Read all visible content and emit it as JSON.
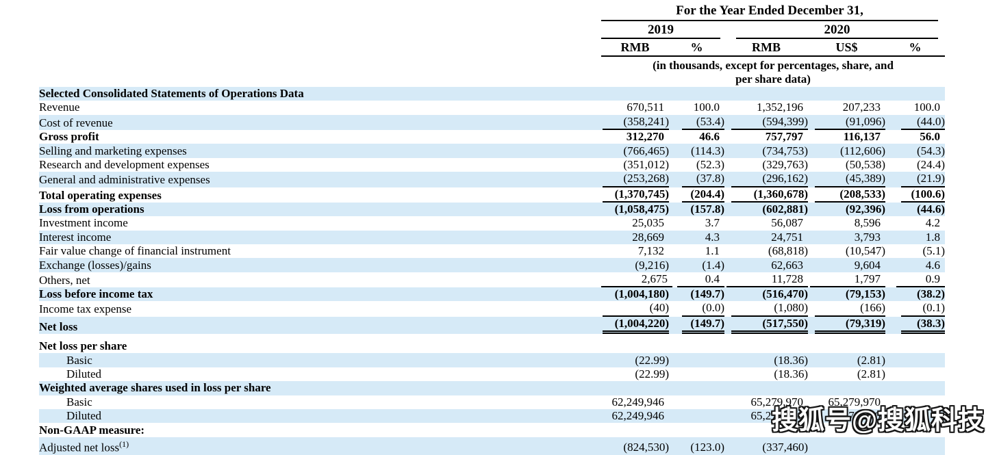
{
  "header": {
    "title": "For the Year Ended December 31,",
    "groups": [
      {
        "label": "2019"
      },
      {
        "label": "2020"
      }
    ],
    "columns": [
      "RMB",
      "%",
      "RMB",
      "US$",
      "%"
    ],
    "note_line1": "(in thousands, except for percentages, share, and",
    "note_line2": "per share data)"
  },
  "table": {
    "rows": [
      {
        "label": "Selected Consolidated Statements of Operations Data",
        "bold": true,
        "indent": false,
        "shade": true,
        "rule": "",
        "values": [
          "",
          "",
          "",
          "",
          ""
        ]
      },
      {
        "label": "Revenue",
        "bold": false,
        "indent": false,
        "shade": false,
        "rule": "",
        "values": [
          "670,511",
          "100.0",
          "1,352,196",
          "207,233",
          "100.0"
        ]
      },
      {
        "label": "Cost of revenue",
        "bold": false,
        "indent": false,
        "shade": true,
        "rule": "single",
        "values": [
          "(358,241)",
          "(53.4)",
          "(594,399)",
          "(91,096)",
          "(44.0)"
        ]
      },
      {
        "label": "Gross profit",
        "bold": true,
        "indent": false,
        "shade": false,
        "rule": "",
        "values": [
          "312,270",
          "46.6",
          "757,797",
          "116,137",
          "56.0"
        ]
      },
      {
        "label": "Selling and marketing expenses",
        "bold": false,
        "indent": false,
        "shade": true,
        "rule": "",
        "values": [
          "(766,465)",
          "(114.3)",
          "(734,753)",
          "(112,606)",
          "(54.3)"
        ]
      },
      {
        "label": "Research and development expenses",
        "bold": false,
        "indent": false,
        "shade": false,
        "rule": "",
        "values": [
          "(351,012)",
          "(52.3)",
          "(329,763)",
          "(50,538)",
          "(24.4)"
        ]
      },
      {
        "label": "General and administrative expenses",
        "bold": false,
        "indent": false,
        "shade": true,
        "rule": "single",
        "values": [
          "(253,268)",
          "(37.8)",
          "(296,162)",
          "(45,389)",
          "(21.9)"
        ]
      },
      {
        "label": "Total operating expenses",
        "bold": true,
        "indent": false,
        "shade": false,
        "rule": "single",
        "values": [
          "(1,370,745)",
          "(204.4)",
          "(1,360,678)",
          "(208,533)",
          "(100.6)"
        ]
      },
      {
        "label": "Loss from operations",
        "bold": true,
        "indent": false,
        "shade": true,
        "rule": "",
        "values": [
          "(1,058,475)",
          "(157.8)",
          "(602,881)",
          "(92,396)",
          "(44.6)"
        ]
      },
      {
        "label": "Investment income",
        "bold": false,
        "indent": false,
        "shade": false,
        "rule": "",
        "values": [
          "25,035",
          "3.7",
          "56,087",
          "8,596",
          "4.2"
        ]
      },
      {
        "label": "Interest income",
        "bold": false,
        "indent": false,
        "shade": true,
        "rule": "",
        "values": [
          "28,669",
          "4.3",
          "24,751",
          "3,793",
          "1.8"
        ]
      },
      {
        "label": "Fair value change of financial instrument",
        "bold": false,
        "indent": false,
        "shade": false,
        "rule": "",
        "values": [
          "7,132",
          "1.1",
          "(68,818)",
          "(10,547)",
          "(5.1)"
        ]
      },
      {
        "label": "Exchange (losses)/gains",
        "bold": false,
        "indent": false,
        "shade": true,
        "rule": "",
        "values": [
          "(9,216)",
          "(1.4)",
          "62,663",
          "9,604",
          "4.6"
        ]
      },
      {
        "label": "Others, net",
        "bold": false,
        "indent": false,
        "shade": false,
        "rule": "single",
        "values": [
          "2,675",
          "0.4",
          "11,728",
          "1,797",
          "0.9"
        ]
      },
      {
        "label": "Loss before income tax",
        "bold": true,
        "indent": false,
        "shade": true,
        "rule": "",
        "values": [
          "(1,004,180)",
          "(149.7)",
          "(516,470)",
          "(79,153)",
          "(38.2)"
        ]
      },
      {
        "label": "Income tax expense",
        "bold": false,
        "indent": false,
        "shade": false,
        "rule": "single",
        "values": [
          "(40)",
          "(0.0)",
          "(1,080)",
          "(166)",
          "(0.1)"
        ]
      },
      {
        "label": "Net loss",
        "bold": true,
        "indent": false,
        "shade": true,
        "rule": "double",
        "values": [
          "(1,004,220)",
          "(149.7)",
          "(517,550)",
          "(79,319)",
          "(38.3)"
        ]
      },
      {
        "type": "spacer"
      },
      {
        "label": "Net loss per share",
        "bold": true,
        "indent": false,
        "shade": false,
        "rule": "",
        "values": [
          "",
          "",
          "",
          "",
          ""
        ]
      },
      {
        "label": "Basic",
        "bold": false,
        "indent": true,
        "shade": true,
        "rule": "",
        "values": [
          "(22.99)",
          "",
          "(18.36)",
          "(2.81)",
          ""
        ]
      },
      {
        "label": "Diluted",
        "bold": false,
        "indent": true,
        "shade": false,
        "rule": "",
        "values": [
          "(22.99)",
          "",
          "(18.36)",
          "(2.81)",
          ""
        ]
      },
      {
        "label": "Weighted average shares used in loss per share",
        "bold": true,
        "indent": false,
        "shade": true,
        "rule": "",
        "values": [
          "",
          "",
          "",
          "",
          ""
        ]
      },
      {
        "label": "Basic",
        "bold": false,
        "indent": true,
        "shade": false,
        "rule": "",
        "values": [
          "62,249,946",
          "",
          "65,279,970",
          "65,279,970",
          ""
        ]
      },
      {
        "label": "Diluted",
        "bold": false,
        "indent": true,
        "shade": true,
        "rule": "",
        "values": [
          "62,249,946",
          "",
          "65,279,970",
          "65,279,970",
          ""
        ]
      },
      {
        "label": "Non-GAAP measure:",
        "bold": true,
        "indent": false,
        "shade": false,
        "rule": "",
        "values": [
          "",
          "",
          "",
          "",
          ""
        ]
      },
      {
        "label": "Adjusted net loss",
        "sup": "(1)",
        "bold": false,
        "indent": false,
        "shade": true,
        "rule": "",
        "values": [
          "(824,530)",
          "(123.0)",
          "(337,460)",
          "",
          ""
        ]
      }
    ]
  },
  "watermark": {
    "text": "搜狐号@搜狐科技"
  },
  "colors": {
    "stripe": "#d6eaf7",
    "rule": "#000000",
    "text": "#000000",
    "watermark_fill": "#ffffff",
    "watermark_outline": "#161616"
  }
}
